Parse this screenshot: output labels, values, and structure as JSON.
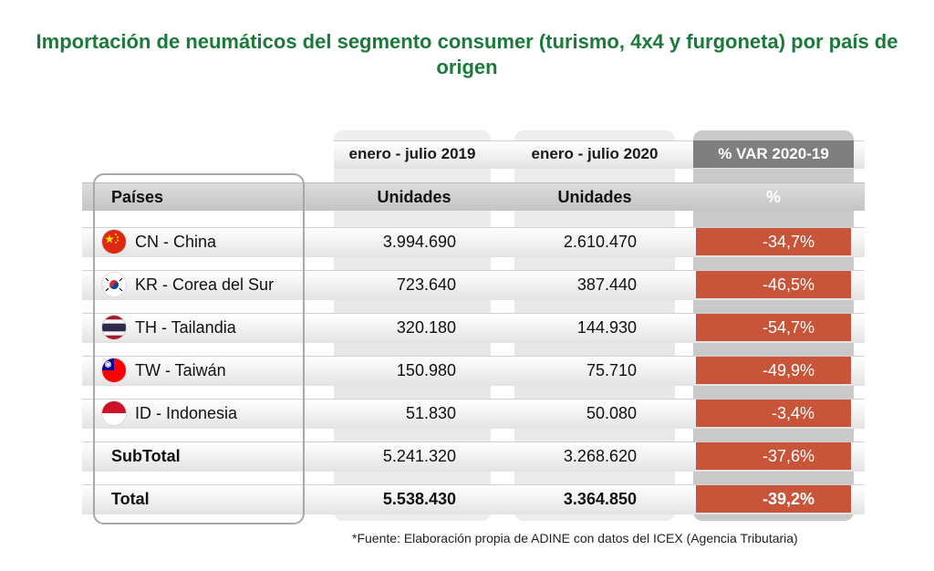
{
  "chart_data": {
    "type": "table",
    "title": "Importación de neumáticos del segmento consumer (turismo, 4x4 y furgoneta) por país de origen",
    "column_headers": [
      "enero - julio 2019",
      "enero - julio 2020",
      "% VAR 2020-19"
    ],
    "subheaders": [
      "Países",
      "Unidades",
      "Unidades",
      "%"
    ],
    "rows": [
      {
        "country": "CN - China",
        "flag": "china-flag-icon",
        "v2019": "3.994.690",
        "v2020": "2.610.470",
        "var": "-34,7%"
      },
      {
        "country": "KR - Corea del Sur",
        "flag": "south-korea-flag-icon",
        "v2019": "723.640",
        "v2020": "387.440",
        "var": "-46,5%"
      },
      {
        "country": "TH - Tailandia",
        "flag": "thailand-flag-icon",
        "v2019": "320.180",
        "v2020": "144.930",
        "var": "-54,7%"
      },
      {
        "country": "TW - Taiwán",
        "flag": "taiwan-flag-icon",
        "v2019": "150.980",
        "v2020": "75.710",
        "var": "-49,9%"
      },
      {
        "country": "ID - Indonesia",
        "flag": "indonesia-flag-icon",
        "v2019": "51.830",
        "v2020": "50.080",
        "var": "-3,4%"
      },
      {
        "country": "SubTotal",
        "v2019": "5.241.320",
        "v2020": "3.268.620",
        "var": "-37,6%"
      },
      {
        "country": "Total",
        "v2019": "5.538.430",
        "v2020": "3.364.850",
        "var": "-39,2%"
      }
    ],
    "footnote": "*Fuente: Elaboración propia de ADINE con datos del ICEX (Agencia Tributaria)"
  },
  "colors": {
    "title": "#1b7a3a",
    "var_cell": "#c8553a",
    "var_header": "#7f7f7f"
  }
}
